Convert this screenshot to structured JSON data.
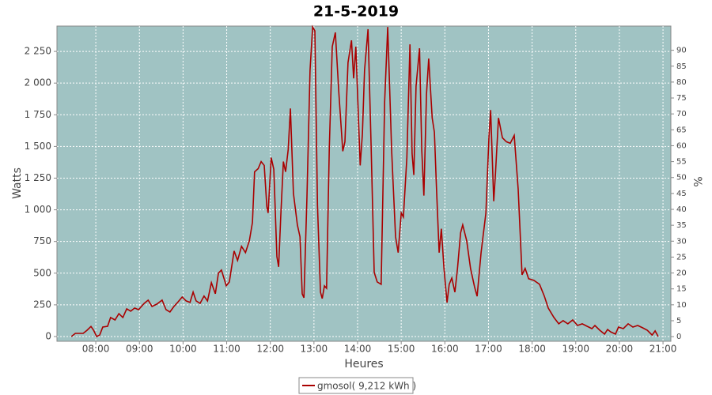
{
  "chart_data": {
    "type": "line",
    "title": "21-5-2019",
    "xlabel": "Heures",
    "ylabel": "Watts",
    "y2label": "%",
    "grid": true,
    "legend": "bottom",
    "xlim": [
      7.11,
      21.18
    ],
    "xticks": [
      {
        "value": 8,
        "label": "08:00"
      },
      {
        "value": 9,
        "label": "09:00"
      },
      {
        "value": 10,
        "label": "10:00"
      },
      {
        "value": 11,
        "label": "11:00"
      },
      {
        "value": 12,
        "label": "12:00"
      },
      {
        "value": 13,
        "label": "13:00"
      },
      {
        "value": 14,
        "label": "14:00"
      },
      {
        "value": 15,
        "label": "15:00"
      },
      {
        "value": 16,
        "label": "16:00"
      },
      {
        "value": 17,
        "label": "17:00"
      },
      {
        "value": 18,
        "label": "18:00"
      },
      {
        "value": 19,
        "label": "19:00"
      },
      {
        "value": 20,
        "label": "20:00"
      },
      {
        "value": 21,
        "label": "21:00"
      }
    ],
    "ylim": [
      -37.5,
      2450
    ],
    "yticks": [
      0,
      250,
      500,
      750,
      {
        "value": 1000,
        "label": "1 000"
      },
      {
        "value": 1250,
        "label": "1 250"
      },
      {
        "value": 1500,
        "label": "1 500"
      },
      {
        "value": 1750,
        "label": "1 750"
      },
      {
        "value": 2000,
        "label": "2 000"
      },
      {
        "value": 2250,
        "label": "2 250"
      }
    ],
    "y2lim": [
      -1.46,
      97.6
    ],
    "y2ticks": [
      0,
      5,
      10,
      15,
      20,
      25,
      30,
      35,
      40,
      45,
      50,
      55,
      60,
      65,
      70,
      75,
      80,
      85,
      90
    ],
    "x": [
      7.44,
      7.53,
      7.71,
      7.8,
      7.89,
      7.95,
      8.02,
      8.09,
      8.16,
      8.27,
      8.34,
      8.44,
      8.53,
      8.62,
      8.71,
      8.8,
      8.89,
      8.98,
      9.11,
      9.2,
      9.29,
      9.4,
      9.52,
      9.61,
      9.7,
      9.79,
      9.89,
      9.98,
      10.07,
      10.16,
      10.23,
      10.3,
      10.39,
      10.48,
      10.56,
      10.65,
      10.74,
      10.81,
      10.88,
      10.99,
      11.06,
      11.17,
      11.25,
      11.34,
      11.43,
      11.52,
      11.59,
      11.64,
      11.72,
      11.79,
      11.86,
      11.92,
      11.95,
      12.02,
      12.08,
      12.15,
      12.19,
      12.24,
      12.3,
      12.35,
      12.41,
      12.46,
      12.53,
      12.62,
      12.68,
      12.73,
      12.77,
      12.84,
      12.91,
      12.97,
      13.02,
      13.08,
      13.15,
      13.19,
      13.24,
      13.29,
      13.35,
      13.42,
      13.49,
      13.57,
      13.66,
      13.71,
      13.78,
      13.86,
      13.91,
      13.96,
      14.06,
      14.11,
      14.16,
      14.24,
      14.31,
      14.38,
      14.45,
      14.54,
      14.62,
      14.69,
      14.78,
      14.87,
      14.93,
      15.0,
      15.05,
      15.13,
      15.2,
      15.25,
      15.29,
      15.34,
      15.42,
      15.47,
      15.52,
      15.58,
      15.63,
      15.71,
      15.76,
      15.81,
      15.87,
      15.92,
      15.98,
      16.05,
      16.1,
      16.16,
      16.23,
      16.29,
      16.36,
      16.41,
      16.5,
      16.59,
      16.68,
      16.74,
      16.83,
      16.94,
      17.01,
      17.05,
      17.12,
      17.16,
      17.23,
      17.32,
      17.41,
      17.5,
      17.59,
      17.68,
      17.77,
      17.84,
      17.92,
      18.04,
      18.17,
      18.28,
      18.37,
      18.5,
      18.61,
      18.71,
      18.82,
      18.93,
      19.04,
      19.15,
      19.26,
      19.37,
      19.44,
      19.55,
      19.66,
      19.73,
      19.8,
      19.91,
      19.98,
      20.09,
      20.2,
      20.31,
      20.42,
      20.53,
      20.64,
      20.75,
      20.82,
      20.89
    ],
    "series": [
      {
        "name": "gmosol( 9,212 kWh )",
        "color": "#aa0000",
        "values": [
          0,
          25,
          25,
          50,
          80,
          50,
          0,
          12,
          75,
          81,
          150,
          131,
          181,
          150,
          219,
          200,
          225,
          212,
          262,
          287,
          237,
          256,
          287,
          212,
          194,
          237,
          275,
          312,
          281,
          269,
          350,
          281,
          262,
          319,
          281,
          425,
          337,
          500,
          525,
          400,
          431,
          675,
          600,
          712,
          662,
          756,
          900,
          1300,
          1325,
          1381,
          1350,
          1025,
          975,
          1412,
          1319,
          631,
          550,
          950,
          1381,
          1300,
          1475,
          1800,
          1131,
          881,
          787,
          337,
          306,
          1100,
          2100,
          2443,
          2412,
          1037,
          350,
          300,
          400,
          381,
          1475,
          2287,
          2400,
          1925,
          1462,
          1537,
          2162,
          2337,
          2037,
          2287,
          1350,
          1600,
          2100,
          2425,
          1506,
          506,
          431,
          412,
          1850,
          2443,
          1475,
          787,
          662,
          975,
          943,
          1412,
          2306,
          1443,
          1275,
          1975,
          2275,
          1475,
          1112,
          1912,
          2193,
          1725,
          1612,
          1162,
          662,
          850,
          537,
          268,
          412,
          462,
          350,
          537,
          818,
          881,
          756,
          537,
          393,
          318,
          662,
          975,
          1568,
          1787,
          1068,
          1287,
          1725,
          1568,
          1537,
          1525,
          1587,
          1162,
          487,
          537,
          456,
          443,
          412,
          318,
          225,
          150,
          100,
          125,
          100,
          131,
          87,
          100,
          81,
          62,
          87,
          50,
          19,
          56,
          37,
          19,
          75,
          62,
          100,
          75,
          87,
          69,
          50,
          12,
          44,
          0
        ]
      }
    ]
  }
}
